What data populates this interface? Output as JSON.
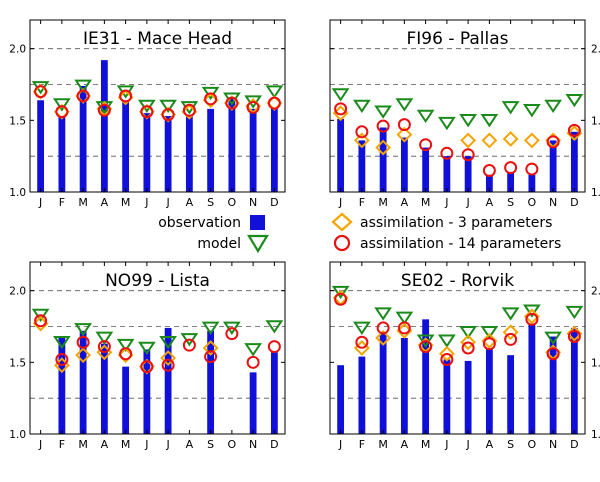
{
  "months": [
    "J",
    "F",
    "M",
    "A",
    "M",
    "J",
    "J",
    "A",
    "S",
    "O",
    "N",
    "D"
  ],
  "yticks": [
    1.0,
    1.5,
    2.0
  ],
  "dashed_grid": [
    1.25,
    1.75
  ],
  "solid_grid": [
    2.0
  ],
  "ylim": [
    1.0,
    2.2
  ],
  "colors": {
    "observation": "#1010d8",
    "model": "#1a8a1a",
    "assim3": "#f5a300",
    "assim14": "#e81010"
  },
  "legend": {
    "observation": "observation",
    "model": "model",
    "assim3": "assimilation - 3 parameters",
    "assim14": "assimilation - 14 parameters"
  },
  "chart_data": [
    {
      "type": "bar",
      "title": "IE31 - Mace Head",
      "categories": [
        "J",
        "F",
        "M",
        "A",
        "M",
        "J",
        "J",
        "A",
        "S",
        "O",
        "N",
        "D"
      ],
      "ylim": [
        1.0,
        2.2
      ],
      "ytick_side": "left",
      "observation": [
        1.64,
        1.53,
        1.74,
        1.92,
        1.64,
        1.55,
        1.53,
        1.53,
        1.58,
        1.66,
        1.58,
        1.58
      ],
      "model": [
        1.74,
        1.62,
        1.75,
        1.6,
        1.71,
        1.61,
        1.61,
        1.6,
        1.7,
        1.66,
        1.64,
        1.71
      ],
      "assim3": [
        1.7,
        1.56,
        1.67,
        1.58,
        1.66,
        1.56,
        1.54,
        1.56,
        1.64,
        1.62,
        1.6,
        1.62
      ],
      "assim14": [
        1.7,
        1.56,
        1.67,
        1.57,
        1.67,
        1.56,
        1.54,
        1.57,
        1.65,
        1.62,
        1.59,
        1.62
      ]
    },
    {
      "type": "bar",
      "title": "FI96 - Pallas",
      "categories": [
        "J",
        "F",
        "M",
        "A",
        "M",
        "J",
        "J",
        "A",
        "S",
        "O",
        "N",
        "D"
      ],
      "ylim": [
        1.0,
        2.2
      ],
      "ytick_side": "right",
      "observation": [
        1.51,
        1.36,
        1.45,
        1.38,
        1.31,
        1.25,
        1.25,
        1.12,
        1.14,
        1.12,
        1.36,
        1.42
      ],
      "model": [
        1.69,
        1.61,
        1.57,
        1.62,
        1.54,
        1.49,
        1.51,
        1.51,
        1.6,
        1.58,
        1.61,
        1.65
      ],
      "assim3": [
        1.55,
        1.36,
        1.31,
        1.4,
        null,
        null,
        1.36,
        1.36,
        1.37,
        1.36,
        1.36,
        1.41
      ],
      "assim14": [
        1.58,
        1.42,
        1.46,
        1.47,
        1.33,
        1.27,
        1.26,
        1.15,
        1.17,
        1.16,
        1.35,
        1.43
      ]
    },
    {
      "type": "bar",
      "title": "NO99 - Lista",
      "categories": [
        "J",
        "F",
        "M",
        "A",
        "M",
        "J",
        "J",
        "A",
        "S",
        "O",
        "N",
        "D"
      ],
      "ylim": [
        1.0,
        2.2
      ],
      "ytick_side": "left",
      "observation": [
        null,
        1.67,
        1.72,
        1.63,
        1.47,
        1.59,
        1.74,
        null,
        1.72,
        null,
        1.43,
        1.57
      ],
      "model": [
        1.84,
        1.65,
        1.74,
        1.68,
        1.63,
        1.61,
        1.65,
        1.67,
        1.75,
        1.75,
        1.6,
        1.76
      ],
      "assim3": [
        1.77,
        1.48,
        1.55,
        1.57,
        1.55,
        1.47,
        1.53,
        null,
        1.6,
        null,
        null,
        null
      ],
      "assim14": [
        1.79,
        1.52,
        1.64,
        1.61,
        1.56,
        1.47,
        1.48,
        1.62,
        1.54,
        1.7,
        1.5,
        1.61
      ]
    },
    {
      "type": "bar",
      "title": "SE02 - Rorvik",
      "categories": [
        "J",
        "F",
        "M",
        "A",
        "M",
        "J",
        "J",
        "A",
        "S",
        "O",
        "N",
        "D"
      ],
      "ylim": [
        1.0,
        2.2
      ],
      "ytick_side": "right",
      "observation": [
        1.48,
        1.54,
        1.7,
        1.67,
        1.8,
        1.52,
        1.51,
        1.6,
        1.55,
        1.77,
        1.68,
        1.74
      ],
      "model": [
        2.0,
        1.75,
        1.85,
        1.82,
        1.66,
        1.66,
        1.72,
        1.72,
        1.85,
        1.87,
        1.68,
        1.86
      ],
      "assim3": [
        1.95,
        1.6,
        1.67,
        1.72,
        1.62,
        1.56,
        1.64,
        1.65,
        1.71,
        1.82,
        1.57,
        1.7
      ],
      "assim14": [
        1.94,
        1.64,
        1.74,
        1.74,
        1.61,
        1.52,
        1.6,
        1.63,
        1.66,
        1.8,
        1.56,
        1.68
      ]
    }
  ]
}
